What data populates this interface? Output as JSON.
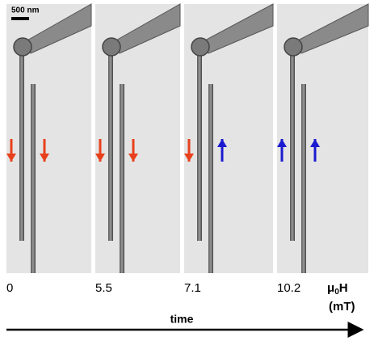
{
  "scale_bar": "500 nm",
  "panels": [
    {
      "field": 0
    },
    {
      "field": 5.5
    },
    {
      "field": 7.1
    },
    {
      "field": 10.2
    }
  ],
  "axis_label": {
    "symbol": "μ",
    "subscript": "0",
    "main": "H",
    "unit": "(mT)"
  },
  "time_label": "time"
}
